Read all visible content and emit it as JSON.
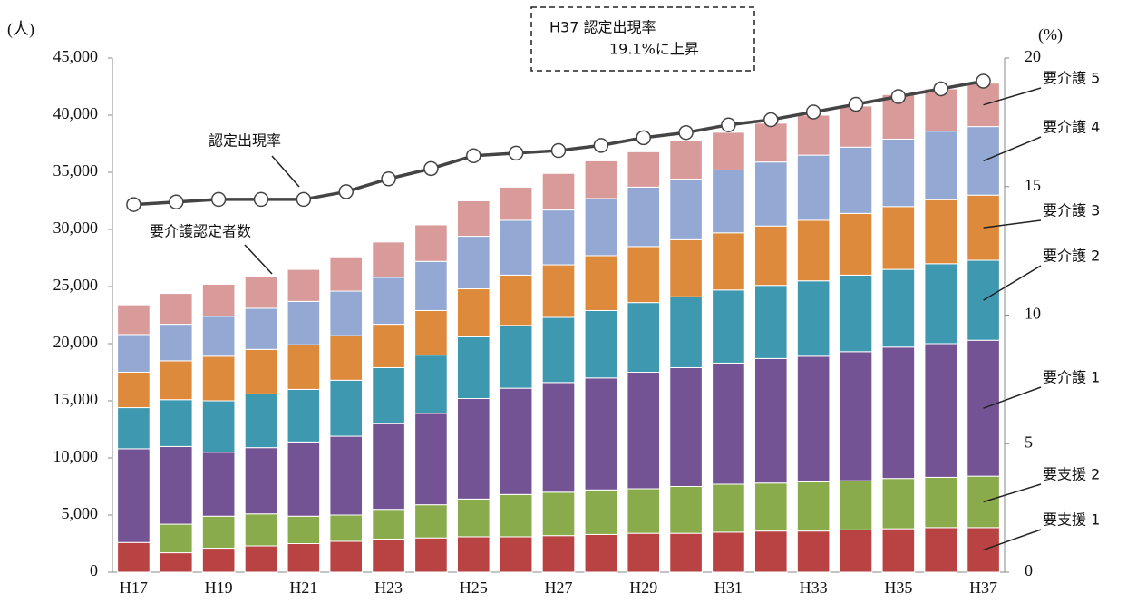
{
  "chart_data": {
    "type": "bar",
    "stacked": true,
    "y_label": "(人)",
    "y2_label": "(%)",
    "callout": [
      "H37 認定出現率",
      "19.1%に上昇"
    ],
    "bar_label": "要介護認定者数",
    "categories": [
      "H17",
      null,
      "H19",
      null,
      "H21",
      null,
      "H23",
      null,
      "H25",
      null,
      "H27",
      null,
      "H29",
      null,
      "H31",
      null,
      "H33",
      null,
      "H35",
      null,
      "H37"
    ],
    "series": [
      {
        "name": "要支援 1",
        "color": "#b94242",
        "values": [
          2600,
          1700,
          2100,
          2300,
          2500,
          2700,
          2900,
          3000,
          3100,
          3100,
          3200,
          3300,
          3400,
          3400,
          3500,
          3600,
          3600,
          3700,
          3800,
          3900,
          3900
        ]
      },
      {
        "name": "要支援 2",
        "color": "#8aab4b",
        "values": [
          0,
          2500,
          2800,
          2800,
          2400,
          2300,
          2600,
          2900,
          3300,
          3700,
          3800,
          3900,
          3900,
          4100,
          4200,
          4200,
          4300,
          4300,
          4400,
          4400,
          4500
        ]
      },
      {
        "name": "要介護 1",
        "color": "#735393",
        "values": [
          8200,
          6800,
          5600,
          5800,
          6500,
          6900,
          7500,
          8000,
          8800,
          9300,
          9600,
          9800,
          10200,
          10400,
          10600,
          10900,
          11000,
          11300,
          11500,
          11700,
          11900
        ]
      },
      {
        "name": "要介護 2",
        "color": "#3e98b0",
        "values": [
          3600,
          4100,
          4500,
          4700,
          4600,
          4900,
          4900,
          5100,
          5400,
          5500,
          5700,
          5900,
          6100,
          6200,
          6400,
          6400,
          6600,
          6700,
          6800,
          7000,
          7000
        ]
      },
      {
        "name": "要介護 3",
        "color": "#dd8a3c",
        "values": [
          3100,
          3400,
          3900,
          3900,
          3900,
          3900,
          3800,
          3900,
          4200,
          4400,
          4600,
          4800,
          4900,
          5000,
          5000,
          5200,
          5300,
          5400,
          5500,
          5600,
          5700
        ]
      },
      {
        "name": "要介護 4",
        "color": "#93a9d4",
        "values": [
          3300,
          3200,
          3500,
          3600,
          3800,
          3900,
          4100,
          4300,
          4600,
          4800,
          4800,
          5000,
          5200,
          5300,
          5500,
          5600,
          5700,
          5800,
          5900,
          6000,
          6000
        ]
      },
      {
        "name": "要介護 5",
        "color": "#d99a9a",
        "values": [
          2600,
          2700,
          2800,
          2800,
          2800,
          3000,
          3100,
          3200,
          3100,
          2900,
          3200,
          3300,
          3100,
          3400,
          3300,
          3400,
          3500,
          3600,
          3900,
          3700,
          3800
        ]
      },
      {
        "name": "認定出現率",
        "type": "line",
        "axis": "y2",
        "color": "#444444",
        "values": [
          14.3,
          14.4,
          14.5,
          14.5,
          14.5,
          14.8,
          15.3,
          15.7,
          16.2,
          16.3,
          16.4,
          16.6,
          16.9,
          17.1,
          17.4,
          17.6,
          17.9,
          18.2,
          18.5,
          18.8,
          19.1
        ]
      }
    ],
    "ylim": [
      0,
      45000
    ],
    "yticks": [
      0,
      {
        "value": 5000,
        "label": "5,000"
      },
      {
        "value": 10000,
        "label": "10,000"
      },
      {
        "value": 15000,
        "label": "15,000"
      },
      {
        "value": 20000,
        "label": "20,000"
      },
      {
        "value": 25000,
        "label": "25,000"
      },
      {
        "value": 30000,
        "label": "30,000"
      },
      {
        "value": 35000,
        "label": "35,000"
      },
      {
        "value": 40000,
        "label": "40,000"
      },
      {
        "value": 45000,
        "label": "45,000"
      }
    ],
    "y2lim": [
      0,
      20
    ],
    "y2ticks": [
      0,
      5,
      10,
      15,
      20
    ],
    "grid": false
  }
}
